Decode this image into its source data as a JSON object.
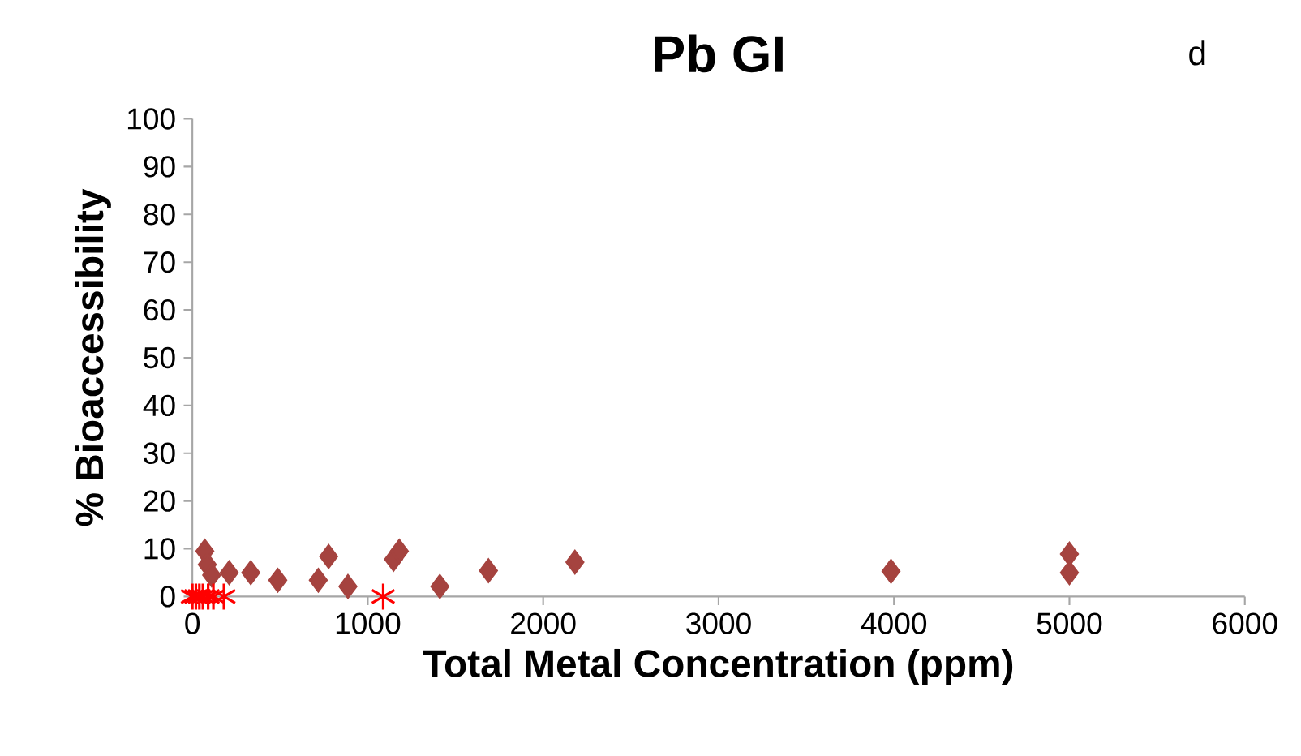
{
  "chart_data": {
    "type": "scatter",
    "title": "Pb GI",
    "xlabel": "Total Metal Concentration (ppm)",
    "ylabel": "% Bioaccessibility",
    "annotations": [
      "d"
    ],
    "series": [
      {
        "color": "#a5433f",
        "marker": "diamond",
        "x": [
          71,
          85,
          110,
          210,
          333,
          487,
          718,
          777,
          887,
          1147,
          1180,
          1411,
          1688,
          2181,
          3983,
          5000,
          5000
        ],
        "values": [
          9.5,
          6.7,
          4.5,
          5,
          5,
          3.4,
          3.4,
          8.4,
          2.1,
          7.8,
          9.5,
          2.1,
          5.4,
          7.2,
          5.3,
          8.9,
          5.0
        ]
      },
      {
        "color": "#ff0000",
        "marker": "cross",
        "x": [
          0,
          20,
          40,
          60,
          90,
          120,
          180,
          1088
        ],
        "values": [
          0,
          0,
          0,
          0,
          0,
          0,
          0,
          0
        ]
      }
    ],
    "xlim": [
      0,
      6000
    ],
    "xticks": [
      0,
      1000,
      2000,
      3000,
      4000,
      5000,
      6000
    ],
    "ylim": [
      0,
      100
    ],
    "yticks": [
      0,
      10,
      20,
      30,
      40,
      50,
      60,
      70,
      80,
      90,
      100
    ],
    "grid": false
  }
}
